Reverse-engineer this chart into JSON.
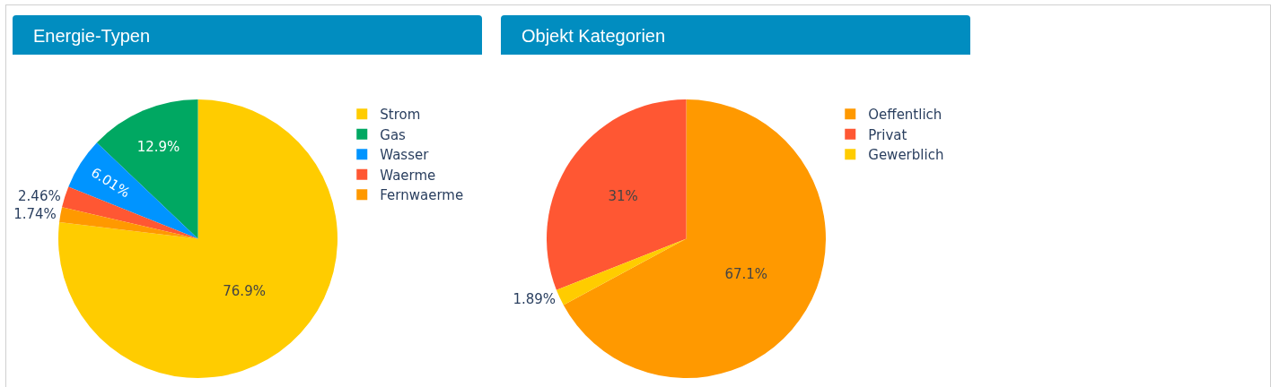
{
  "chart_data": [
    {
      "type": "pie",
      "title": "Energie-Typen",
      "categories": [
        "Strom",
        "Gas",
        "Wasser",
        "Waerme",
        "Fernwaerme"
      ],
      "values": [
        76.9,
        12.9,
        6.01,
        2.46,
        1.74
      ],
      "colors": [
        "#ffcc00",
        "#00a862",
        "#0094ff",
        "#ff5733",
        "#ff9900"
      ],
      "value_labels": [
        "76.9%",
        "12.9%",
        "6.01%",
        "2.46%",
        "1.74%"
      ],
      "legend": "top right"
    },
    {
      "type": "pie",
      "title": "Objekt Kategorien",
      "categories": [
        "Oeffentlich",
        "Privat",
        "Gewerblich"
      ],
      "values": [
        67.1,
        31,
        1.89
      ],
      "colors": [
        "#ff9900",
        "#ff5733",
        "#ffcc00"
      ],
      "value_labels": [
        "67.1%",
        "31%",
        "1.89%"
      ],
      "legend": "top right"
    }
  ]
}
